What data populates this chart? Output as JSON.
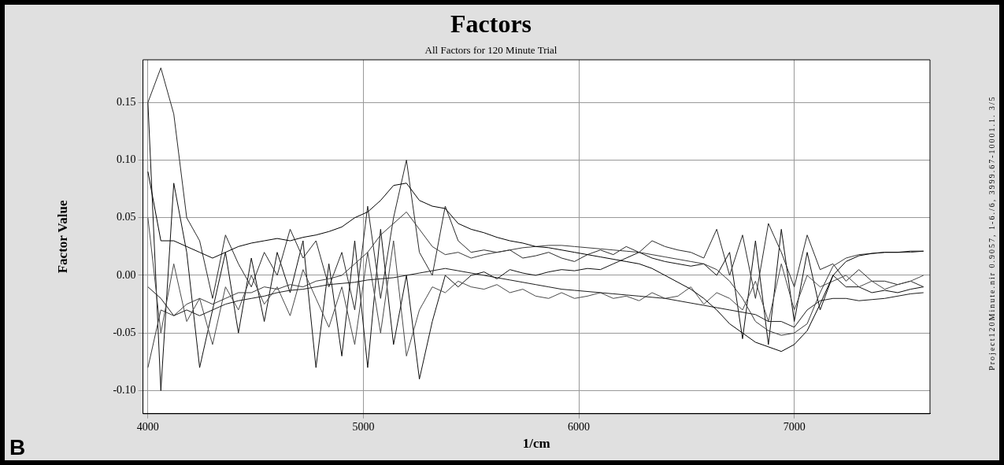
{
  "chart_data": {
    "type": "line",
    "title": "Factors",
    "subtitle": "All Factors for 120 Minute Trial",
    "xlabel": "1/cm",
    "ylabel": "Factor Value",
    "annotations": [
      "B",
      "Project120Minute.nir 0.9057, 1-6./6, 3999.67-10001.1. 3/5"
    ],
    "x": [
      4000,
      4060,
      4120,
      4180,
      4240,
      4300,
      4360,
      4420,
      4480,
      4540,
      4600,
      4660,
      4720,
      4780,
      4840,
      4900,
      4960,
      5020,
      5080,
      5140,
      5200,
      5260,
      5320,
      5380,
      5440,
      5500,
      5560,
      5620,
      5680,
      5740,
      5800,
      5860,
      5920,
      5980,
      6040,
      6100,
      6160,
      6220,
      6280,
      6340,
      6400,
      6460,
      6520,
      6580,
      6640,
      6700,
      6760,
      6820,
      6880,
      6940,
      7000,
      7060,
      7120,
      7180,
      7240,
      7300,
      7360,
      7420,
      7480,
      7540,
      7600
    ],
    "series": [
      {
        "color": "#000000",
        "values": [
          0.09,
          0.03,
          0.03,
          0.025,
          0.02,
          0.015,
          0.02,
          0.025,
          0.028,
          0.03,
          0.032,
          0.03,
          0.033,
          0.035,
          0.038,
          0.042,
          0.05,
          0.055,
          0.065,
          0.078,
          0.08,
          0.065,
          0.06,
          0.058,
          0.045,
          0.04,
          0.037,
          0.033,
          0.03,
          0.028,
          0.025,
          0.024,
          0.022,
          0.02,
          0.018,
          0.016,
          0.014,
          0.012,
          0.01,
          0.006,
          0.0,
          -0.006,
          -0.012,
          -0.02,
          -0.03,
          -0.042,
          -0.05,
          -0.058,
          -0.062,
          -0.066,
          -0.06,
          -0.048,
          -0.025,
          0.0,
          0.012,
          0.017,
          0.019,
          0.02,
          0.02,
          0.021,
          0.021
        ]
      },
      {
        "color": "#3a3a3a",
        "values": [
          -0.08,
          -0.03,
          -0.035,
          -0.025,
          -0.02,
          -0.025,
          -0.02,
          -0.015,
          -0.015,
          -0.01,
          -0.012,
          -0.008,
          -0.01,
          -0.005,
          -0.003,
          0.0,
          0.01,
          0.02,
          0.035,
          0.045,
          0.055,
          0.04,
          0.025,
          0.018,
          0.02,
          0.015,
          0.018,
          0.02,
          0.022,
          0.024,
          0.025,
          0.026,
          0.026,
          0.025,
          0.024,
          0.023,
          0.022,
          0.021,
          0.02,
          0.018,
          0.016,
          0.014,
          0.012,
          0.01,
          0.005,
          -0.005,
          -0.02,
          -0.04,
          -0.048,
          -0.052,
          -0.05,
          -0.042,
          -0.015,
          0.008,
          0.015,
          0.018,
          0.019,
          0.02,
          0.02,
          0.02,
          0.021
        ]
      },
      {
        "color": "#1c1c1c",
        "values": [
          -0.01,
          -0.02,
          -0.035,
          -0.03,
          -0.035,
          -0.03,
          -0.025,
          -0.022,
          -0.02,
          -0.018,
          -0.015,
          -0.013,
          -0.012,
          -0.01,
          -0.008,
          -0.007,
          -0.006,
          -0.004,
          -0.003,
          -0.002,
          0.0,
          0.002,
          0.004,
          0.006,
          0.004,
          0.002,
          0.0,
          -0.002,
          -0.004,
          -0.006,
          -0.008,
          -0.01,
          -0.012,
          -0.013,
          -0.014,
          -0.015,
          -0.016,
          -0.017,
          -0.018,
          -0.019,
          -0.02,
          -0.022,
          -0.024,
          -0.026,
          -0.028,
          -0.03,
          -0.032,
          -0.034,
          -0.04,
          -0.04,
          -0.045,
          -0.03,
          -0.022,
          -0.02,
          -0.02,
          -0.022,
          -0.021,
          -0.02,
          -0.018,
          -0.016,
          -0.015
        ]
      },
      {
        "color": "#4a4a4a",
        "values": [
          0.05,
          -0.05,
          0.01,
          -0.04,
          -0.02,
          -0.06,
          -0.01,
          -0.03,
          0.0,
          -0.025,
          -0.01,
          -0.035,
          0.005,
          -0.02,
          -0.045,
          -0.01,
          -0.06,
          0.02,
          -0.05,
          0.03,
          -0.07,
          -0.03,
          -0.01,
          -0.015,
          -0.005,
          -0.01,
          -0.012,
          -0.008,
          -0.015,
          -0.012,
          -0.018,
          -0.02,
          -0.015,
          -0.02,
          -0.018,
          -0.015,
          -0.02,
          -0.018,
          -0.022,
          -0.015,
          -0.02,
          -0.018,
          -0.01,
          -0.025,
          -0.015,
          -0.02,
          -0.03,
          -0.005,
          -0.04,
          0.01,
          -0.03,
          0.0,
          -0.01,
          -0.005,
          0.0,
          -0.01,
          -0.005,
          -0.012,
          -0.008,
          -0.005,
          0.0
        ]
      },
      {
        "color": "#2a2a2a",
        "values": [
          0.15,
          0.18,
          0.14,
          0.05,
          0.03,
          -0.02,
          0.035,
          0.01,
          -0.01,
          0.02,
          0.0,
          0.04,
          0.015,
          0.03,
          -0.01,
          0.02,
          -0.03,
          0.06,
          -0.02,
          0.05,
          0.1,
          0.02,
          0.0,
          0.06,
          0.03,
          0.02,
          0.022,
          0.02,
          0.022,
          0.015,
          0.017,
          0.02,
          0.015,
          0.012,
          0.018,
          0.022,
          0.018,
          0.025,
          0.02,
          0.03,
          0.025,
          0.022,
          0.02,
          0.015,
          0.04,
          0.0,
          0.035,
          -0.02,
          0.045,
          0.02,
          -0.01,
          0.035,
          0.005,
          0.01,
          -0.005,
          0.005,
          -0.005,
          -0.005,
          -0.008,
          -0.005,
          -0.01
        ]
      },
      {
        "color": "#101010",
        "values": [
          0.15,
          -0.1,
          0.08,
          0.02,
          -0.08,
          -0.03,
          0.02,
          -0.05,
          0.015,
          -0.04,
          0.02,
          -0.015,
          0.03,
          -0.08,
          0.01,
          -0.07,
          0.03,
          -0.08,
          0.04,
          -0.06,
          0.0,
          -0.09,
          -0.04,
          0.0,
          -0.01,
          0.0,
          0.003,
          -0.003,
          0.005,
          0.002,
          0.0,
          0.003,
          0.005,
          0.004,
          0.006,
          0.005,
          0.01,
          0.015,
          0.02,
          0.015,
          0.012,
          0.01,
          0.008,
          0.01,
          0.0,
          0.02,
          -0.055,
          0.03,
          -0.06,
          0.04,
          -0.04,
          0.02,
          -0.03,
          0.0,
          -0.01,
          -0.01,
          -0.015,
          -0.013,
          -0.015,
          -0.012,
          -0.01
        ]
      }
    ],
    "xlim": [
      3977,
      7630
    ],
    "ylim": [
      -0.12,
      0.187
    ],
    "xticks": [
      4000,
      5000,
      6000,
      7000
    ],
    "yticks": [
      {
        "value": -0.1,
        "label": "-0.10"
      },
      {
        "value": -0.05,
        "label": "-0.05"
      },
      {
        "value": 0,
        "label": "0.00"
      },
      {
        "value": 0.05,
        "label": "0.05"
      },
      {
        "value": 0.1,
        "label": "0.10"
      },
      {
        "value": 0.15,
        "label": "0.15"
      }
    ],
    "grid": true,
    "legend": false,
    "marker": "none",
    "line_style": "solid"
  }
}
